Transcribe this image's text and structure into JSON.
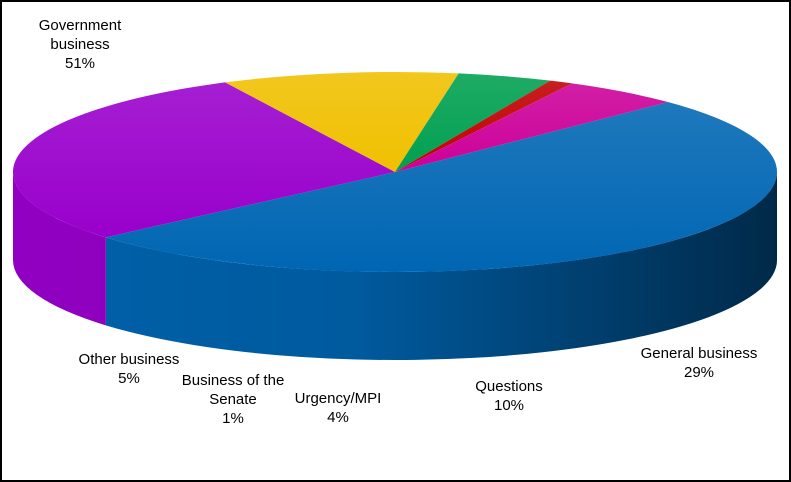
{
  "chart_data": {
    "type": "pie3d",
    "categories": [
      "Government business",
      "General business",
      "Questions",
      "Urgency/MPI",
      "Business of the Senate",
      "Other business"
    ],
    "values": [
      51,
      29,
      10,
      4,
      1,
      5
    ],
    "value_labels": [
      "51%",
      "29%",
      "10%",
      "4%",
      "1%",
      "5%"
    ],
    "colors": [
      "#0066b3",
      "#9900cc",
      "#f0c000",
      "#00a050",
      "#c00000",
      "#cc0099"
    ]
  }
}
